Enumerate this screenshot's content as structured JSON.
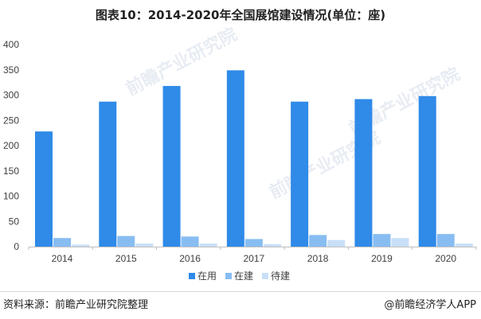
{
  "header": {
    "title": "图表10：2014-2020年全国展馆建设情况(单位：座)"
  },
  "footer": {
    "source": "资料来源：前瞻产业研究院整理",
    "brand": "@前瞻经济学人APP"
  },
  "watermark": {
    "text": "前瞻产业研究院"
  },
  "colors": {
    "in_use": "#2f8ae8",
    "under_construction": "#88bdf2",
    "to_build": "#c8dff7",
    "axis": "#bfbfbf",
    "text": "#404040"
  },
  "chart_data": {
    "type": "bar",
    "categories": [
      "2014",
      "2015",
      "2016",
      "2017",
      "2018",
      "2019",
      "2020"
    ],
    "series": [
      {
        "name": "在用",
        "values": [
          228,
          287,
          318,
          349,
          287,
          292,
          298
        ]
      },
      {
        "name": "在建",
        "values": [
          17,
          21,
          20,
          15,
          23,
          25,
          25
        ]
      },
      {
        "name": "待建",
        "values": [
          4,
          6,
          6,
          5,
          13,
          17,
          6
        ]
      }
    ],
    "ylim": [
      0,
      400
    ],
    "yticks": [
      0,
      50,
      100,
      150,
      200,
      250,
      300,
      350,
      400
    ],
    "grid": false,
    "legend": "bottom"
  }
}
